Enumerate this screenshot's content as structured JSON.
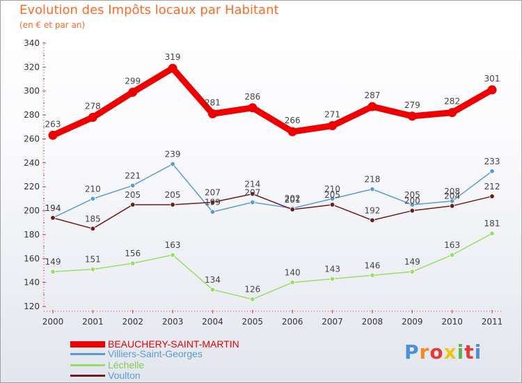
{
  "header": {
    "title": "Evolution des Impôts locaux par Habitant",
    "subtitle": "(en € et par an)"
  },
  "logo": {
    "text": "Proxiti",
    "colors": [
      "#4a8fd8",
      "#f08a1c",
      "#e23b3b",
      "#f2c318",
      "#5bb54d",
      "#e23b3b",
      "#4a8fd8"
    ]
  },
  "chart_data": {
    "type": "line",
    "x": [
      "2000",
      "2001",
      "2002",
      "2003",
      "2004",
      "2005",
      "2006",
      "2007",
      "2008",
      "2009",
      "2010",
      "2011"
    ],
    "ylim": [
      120,
      340
    ],
    "y_ticks": [
      120,
      140,
      160,
      180,
      200,
      220,
      240,
      260,
      280,
      300,
      320,
      340
    ],
    "grid": false,
    "legend_position": "bottom-left",
    "series": [
      {
        "name": "BEAUCHERY-SAINT-MARTIN",
        "color": "#ee0000",
        "values": [
          263,
          278,
          299,
          319,
          281,
          286,
          266,
          271,
          287,
          279,
          282,
          301
        ],
        "labels": [
          "263",
          "278",
          "299",
          "319",
          "281",
          "286",
          "266",
          "271",
          "287",
          "279",
          "282",
          "301"
        ]
      },
      {
        "name": "Villiers-Saint-Georges",
        "color": "#5b9bd5",
        "values": [
          194,
          210,
          221,
          239,
          199,
          207,
          202,
          210,
          218,
          205,
          208,
          233
        ],
        "labels": [
          "194",
          "210",
          "221",
          "239",
          "199",
          "207",
          "202",
          "210",
          "218",
          "205",
          "208",
          "233"
        ]
      },
      {
        "name": "Léchelle",
        "color": "#99dd66",
        "values": [
          149,
          151,
          156,
          163,
          134,
          126,
          140,
          143,
          146,
          149,
          163,
          181
        ],
        "labels": [
          "149",
          "151",
          "156",
          "163",
          "134",
          "126",
          "140",
          "143",
          "146",
          "149",
          "163",
          "181"
        ]
      },
      {
        "name": "Voulton",
        "color": "#6e1b1b",
        "values": [
          194,
          185,
          205,
          205,
          207,
          214,
          201,
          205,
          192,
          200,
          204,
          212
        ],
        "labels": [
          "194",
          "185",
          "205",
          "205",
          "207",
          "214",
          "201",
          "205",
          "192",
          "200",
          "204",
          "212"
        ]
      }
    ]
  }
}
